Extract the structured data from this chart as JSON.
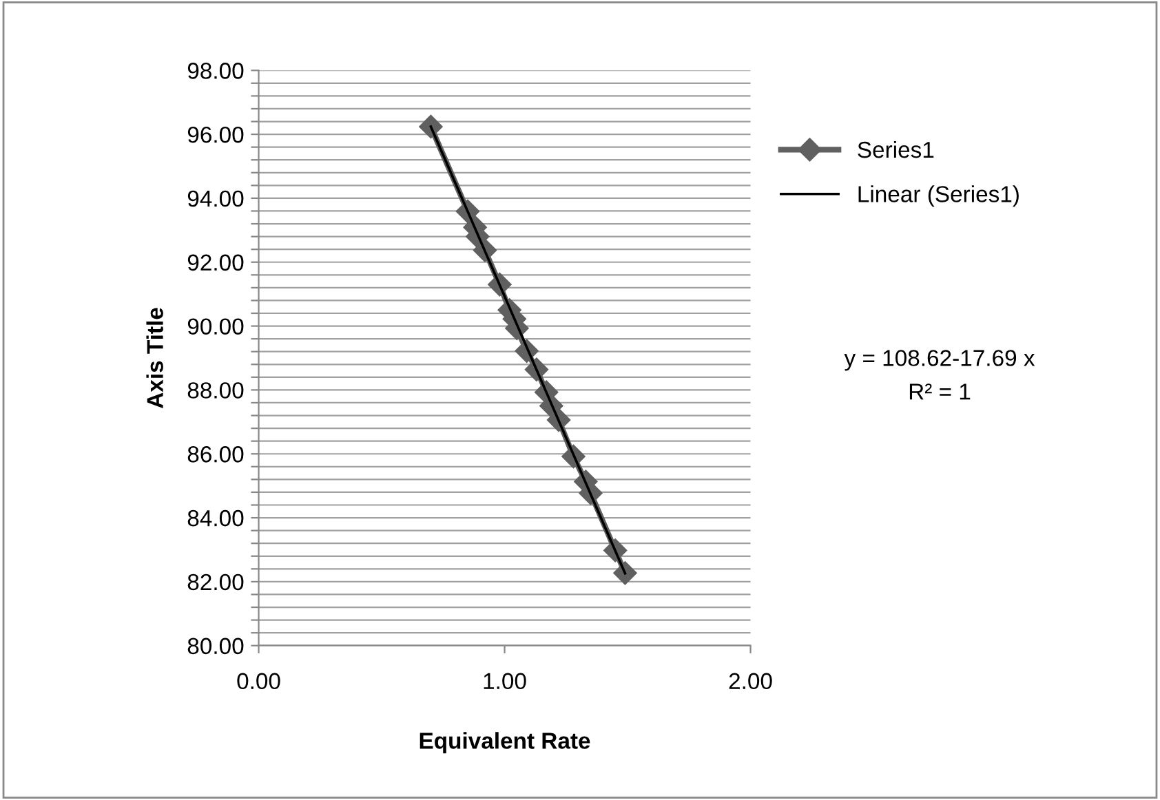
{
  "chart_data": {
    "type": "line",
    "xlabel": "Equivalent Rate",
    "ylabel": "Axis Title",
    "x": [
      0.7,
      0.85,
      0.88,
      0.89,
      0.92,
      0.98,
      1.02,
      1.04,
      1.05,
      1.09,
      1.13,
      1.17,
      1.19,
      1.22,
      1.28,
      1.33,
      1.35,
      1.45,
      1.49
    ],
    "series": [
      {
        "name": "Series1",
        "color": "#606060",
        "marker": "diamond",
        "line_style": "solid",
        "values": [
          96.24,
          93.59,
          93.09,
          92.8,
          92.37,
          91.3,
          90.5,
          90.22,
          89.93,
          89.22,
          88.64,
          87.93,
          87.5,
          87.06,
          85.92,
          85.13,
          84.77,
          82.98,
          82.27
        ]
      },
      {
        "name": "Linear (Series1)",
        "type": "line",
        "color": "#000000",
        "marker": "none",
        "line_style": "solid",
        "x": [
          0.7,
          1.49
        ],
        "values": [
          96.24,
          82.26
        ]
      }
    ],
    "xlim": [
      0,
      2
    ],
    "ylim": [
      80,
      98
    ],
    "xticks": [
      {
        "value": 0,
        "label": "0.00"
      },
      {
        "value": 1,
        "label": "1.00"
      },
      {
        "value": 2,
        "label": "2.00"
      }
    ],
    "yticks": [
      {
        "value": 80,
        "label": "80.00"
      },
      {
        "value": 80.4,
        "label": null
      },
      {
        "value": 80.8,
        "label": null
      },
      {
        "value": 81.2,
        "label": null
      },
      {
        "value": 81.6,
        "label": null
      },
      {
        "value": 82,
        "label": "82.00"
      },
      {
        "value": 82.4,
        "label": null
      },
      {
        "value": 82.8,
        "label": null
      },
      {
        "value": 83.2,
        "label": null
      },
      {
        "value": 83.6,
        "label": null
      },
      {
        "value": 84,
        "label": "84.00"
      },
      {
        "value": 84.4,
        "label": null
      },
      {
        "value": 84.8,
        "label": null
      },
      {
        "value": 85.2,
        "label": null
      },
      {
        "value": 85.6,
        "label": null
      },
      {
        "value": 86,
        "label": "86.00"
      },
      {
        "value": 86.4,
        "label": null
      },
      {
        "value": 86.8,
        "label": null
      },
      {
        "value": 87.2,
        "label": null
      },
      {
        "value": 87.6,
        "label": null
      },
      {
        "value": 88,
        "label": "88.00"
      },
      {
        "value": 88.4,
        "label": null
      },
      {
        "value": 88.8,
        "label": null
      },
      {
        "value": 89.2,
        "label": null
      },
      {
        "value": 89.6,
        "label": null
      },
      {
        "value": 90,
        "label": "90.00"
      },
      {
        "value": 90.4,
        "label": null
      },
      {
        "value": 90.8,
        "label": null
      },
      {
        "value": 91.2,
        "label": null
      },
      {
        "value": 91.6,
        "label": null
      },
      {
        "value": 92,
        "label": "92.00"
      },
      {
        "value": 92.4,
        "label": null
      },
      {
        "value": 92.8,
        "label": null
      },
      {
        "value": 93.2,
        "label": null
      },
      {
        "value": 93.6,
        "label": null
      },
      {
        "value": 94,
        "label": "94.00"
      },
      {
        "value": 94.4,
        "label": null
      },
      {
        "value": 94.8,
        "label": null
      },
      {
        "value": 95.2,
        "label": null
      },
      {
        "value": 95.6,
        "label": null
      },
      {
        "value": 96,
        "label": "96.00"
      },
      {
        "value": 96.4,
        "label": null
      },
      {
        "value": 96.8,
        "label": null
      },
      {
        "value": 97.2,
        "label": null
      },
      {
        "value": 97.6,
        "label": null
      },
      {
        "value": 98,
        "label": "98.00"
      }
    ],
    "grid": "y",
    "legend": "right",
    "annotations": [
      "y = 108.62-17.69 x",
      "R² = 1"
    ]
  }
}
